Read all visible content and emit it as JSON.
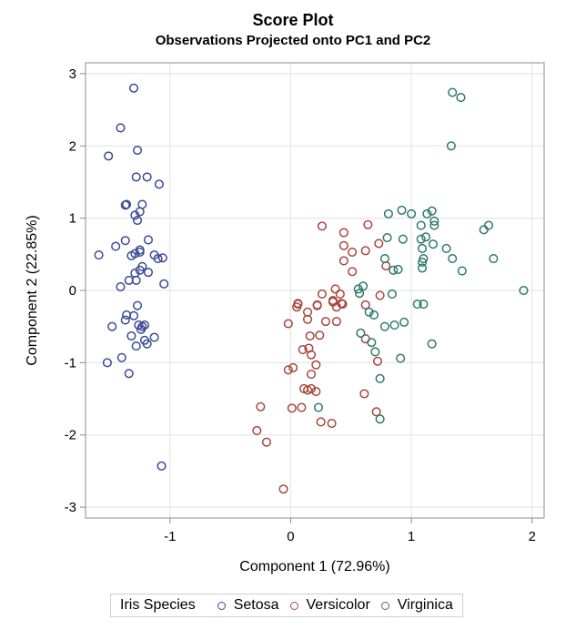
{
  "chart_data": {
    "type": "scatter",
    "title": "Score Plot",
    "subtitle": "Observations Projected onto PC1 and PC2",
    "xlabel": "Component 1 (72.96%)",
    "ylabel": "Component 2 (22.85%)",
    "xlim": [
      -1.7,
      2.1
    ],
    "ylim": [
      -3.15,
      3.15
    ],
    "xticks": [
      -1,
      0,
      1,
      2
    ],
    "yticks": [
      -3,
      -2,
      -1,
      0,
      1,
      2,
      3
    ],
    "grid": true,
    "marker": "open-circle",
    "legend": {
      "title": "Iris Species",
      "placement": "bottom"
    },
    "series": [
      {
        "name": "Setosa",
        "color": "#3b4a96",
        "points": [
          [
            -1.3,
            2.8
          ],
          [
            -1.41,
            2.25
          ],
          [
            -1.51,
            1.86
          ],
          [
            -1.27,
            1.94
          ],
          [
            -1.28,
            1.57
          ],
          [
            -1.19,
            1.57
          ],
          [
            -1.09,
            1.47
          ],
          [
            -1.37,
            1.18
          ],
          [
            -1.36,
            1.19
          ],
          [
            -1.23,
            1.19
          ],
          [
            -1.25,
            1.09
          ],
          [
            -1.29,
            1.04
          ],
          [
            -1.27,
            0.97
          ],
          [
            -1.37,
            0.69
          ],
          [
            -1.18,
            0.7
          ],
          [
            -1.45,
            0.61
          ],
          [
            -1.59,
            0.49
          ],
          [
            -1.32,
            0.48
          ],
          [
            -1.29,
            0.51
          ],
          [
            -1.25,
            0.53
          ],
          [
            -1.25,
            0.56
          ],
          [
            -1.13,
            0.49
          ],
          [
            -1.1,
            0.44
          ],
          [
            -1.06,
            0.45
          ],
          [
            -1.23,
            0.33
          ],
          [
            -1.25,
            0.28
          ],
          [
            -1.29,
            0.24
          ],
          [
            -1.18,
            0.25
          ],
          [
            -1.34,
            0.14
          ],
          [
            -1.28,
            0.14
          ],
          [
            -1.41,
            0.05
          ],
          [
            -1.05,
            0.09
          ],
          [
            -1.27,
            -0.21
          ],
          [
            -1.36,
            -0.34
          ],
          [
            -1.37,
            -0.41
          ],
          [
            -1.3,
            -0.35
          ],
          [
            -1.48,
            -0.5
          ],
          [
            -1.26,
            -0.48
          ],
          [
            -1.23,
            -0.5
          ],
          [
            -1.21,
            -0.48
          ],
          [
            -1.24,
            -0.54
          ],
          [
            -1.32,
            -0.63
          ],
          [
            -1.13,
            -0.65
          ],
          [
            -1.21,
            -0.69
          ],
          [
            -1.19,
            -0.74
          ],
          [
            -1.28,
            -0.77
          ],
          [
            -1.4,
            -0.93
          ],
          [
            -1.52,
            -1.0
          ],
          [
            -1.34,
            -1.15
          ],
          [
            -1.07,
            -2.43
          ]
        ]
      },
      {
        "name": "Versicolor",
        "color": "#a8473c",
        "points": [
          [
            0.26,
            0.89
          ],
          [
            0.64,
            0.91
          ],
          [
            0.44,
            0.8
          ],
          [
            0.44,
            0.62
          ],
          [
            0.51,
            0.53
          ],
          [
            0.62,
            0.55
          ],
          [
            0.73,
            0.65
          ],
          [
            0.44,
            0.41
          ],
          [
            0.51,
            0.26
          ],
          [
            0.79,
            0.34
          ],
          [
            0.37,
            0.02
          ],
          [
            0.26,
            -0.05
          ],
          [
            0.41,
            -0.05
          ],
          [
            0.35,
            -0.14
          ],
          [
            0.42,
            -0.18
          ],
          [
            0.74,
            -0.07
          ],
          [
            0.06,
            -0.18
          ],
          [
            0.22,
            -0.21
          ],
          [
            0.62,
            -0.2
          ],
          [
            0.06,
            -0.19
          ],
          [
            0.05,
            -0.23
          ],
          [
            0.22,
            -0.2
          ],
          [
            0.35,
            -0.16
          ],
          [
            0.38,
            -0.23
          ],
          [
            0.43,
            -0.19
          ],
          [
            0.14,
            -0.3
          ],
          [
            0.14,
            -0.4
          ],
          [
            -0.02,
            -0.46
          ],
          [
            0.29,
            -0.43
          ],
          [
            0.38,
            -0.43
          ],
          [
            0.16,
            -0.63
          ],
          [
            0.24,
            -0.62
          ],
          [
            0.62,
            -0.67
          ],
          [
            0.1,
            -0.82
          ],
          [
            0.15,
            -0.8
          ],
          [
            0.17,
            -0.89
          ],
          [
            0.21,
            -1.03
          ],
          [
            -0.02,
            -1.1
          ],
          [
            0.02,
            -1.07
          ],
          [
            0.17,
            -1.16
          ],
          [
            0.72,
            -0.98
          ],
          [
            0.11,
            -1.36
          ],
          [
            0.17,
            -1.36
          ],
          [
            0.61,
            -1.43
          ],
          [
            0.14,
            -1.38
          ],
          [
            0.21,
            -1.4
          ],
          [
            -0.25,
            -1.61
          ],
          [
            0.01,
            -1.63
          ],
          [
            0.09,
            -1.62
          ],
          [
            0.25,
            -1.82
          ],
          [
            0.34,
            -1.84
          ],
          [
            0.71,
            -1.68
          ],
          [
            -0.28,
            -1.94
          ],
          [
            -0.2,
            -2.1
          ],
          [
            -0.06,
            -2.75
          ]
        ]
      },
      {
        "name": "Virginica",
        "color": "#2f7a6a",
        "points": [
          [
            1.34,
            2.74
          ],
          [
            1.41,
            2.67
          ],
          [
            1.33,
            2.0
          ],
          [
            0.81,
            1.06
          ],
          [
            0.92,
            1.11
          ],
          [
            1.0,
            1.06
          ],
          [
            1.13,
            1.06
          ],
          [
            1.17,
            1.1
          ],
          [
            1.19,
            0.96
          ],
          [
            1.19,
            0.9
          ],
          [
            1.08,
            0.9
          ],
          [
            1.6,
            0.84
          ],
          [
            1.64,
            0.9
          ],
          [
            0.8,
            0.73
          ],
          [
            0.93,
            0.71
          ],
          [
            1.08,
            0.71
          ],
          [
            1.12,
            0.74
          ],
          [
            1.18,
            0.64
          ],
          [
            1.09,
            0.58
          ],
          [
            1.29,
            0.58
          ],
          [
            0.78,
            0.44
          ],
          [
            1.1,
            0.44
          ],
          [
            1.09,
            0.39
          ],
          [
            1.34,
            0.44
          ],
          [
            1.68,
            0.44
          ],
          [
            0.85,
            0.28
          ],
          [
            0.89,
            0.29
          ],
          [
            1.09,
            0.31
          ],
          [
            1.42,
            0.27
          ],
          [
            1.93,
            0.0
          ],
          [
            0.56,
            0.02
          ],
          [
            0.6,
            0.06
          ],
          [
            0.57,
            -0.04
          ],
          [
            0.84,
            -0.05
          ],
          [
            1.05,
            -0.19
          ],
          [
            1.1,
            -0.19
          ],
          [
            0.65,
            -0.3
          ],
          [
            0.69,
            -0.34
          ],
          [
            0.78,
            -0.5
          ],
          [
            0.86,
            -0.48
          ],
          [
            0.94,
            -0.44
          ],
          [
            0.58,
            -0.59
          ],
          [
            0.67,
            -0.72
          ],
          [
            0.7,
            -0.85
          ],
          [
            0.91,
            -0.94
          ],
          [
            1.17,
            -0.74
          ],
          [
            0.74,
            -1.22
          ],
          [
            0.23,
            -1.62
          ],
          [
            0.74,
            -1.78
          ]
        ]
      }
    ]
  }
}
